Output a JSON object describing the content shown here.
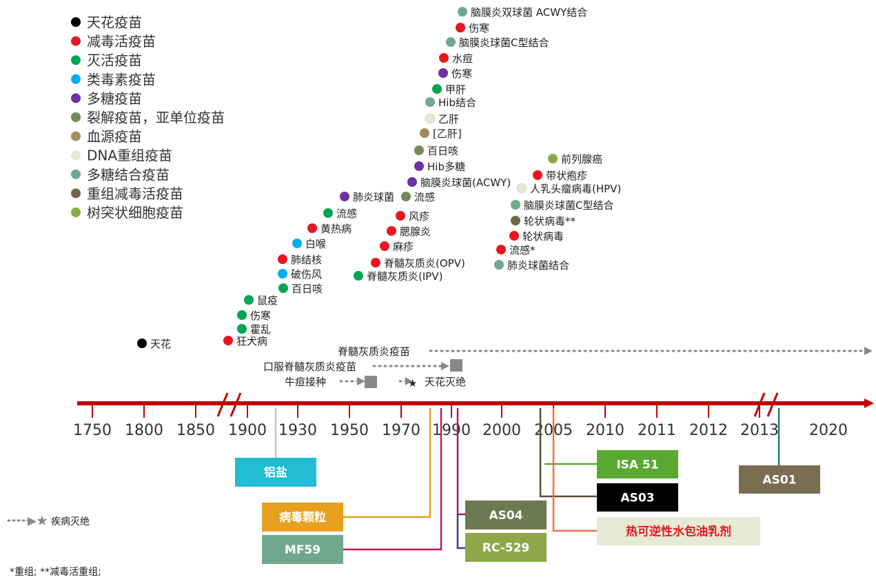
{
  "legend": [
    {
      "label": "天花疫苗",
      "color": "#000000"
    },
    {
      "label": "减毒活疫苗",
      "color": "#e8171f"
    },
    {
      "label": "灭活疫苗",
      "color": "#00a651"
    },
    {
      "label": "类毒素疫苗",
      "color": "#00aeef"
    },
    {
      "label": "多糖疫苗",
      "color": "#7030a0"
    },
    {
      "label": "裂解疫苗，亚单位疫苗",
      "color": "#76885b"
    },
    {
      "label": "血源疫苗",
      "color": "#a38a5f"
    },
    {
      "label": "DNA重组疫苗",
      "color": "#e6e8d2"
    },
    {
      "label": "多糖结合疫苗",
      "color": "#6fa88f"
    },
    {
      "label": "重组减毒活疫苗",
      "color": "#6d6647"
    },
    {
      "label": "树突状细胞疫苗",
      "color": "#8da84a"
    }
  ],
  "vaccines": [
    {
      "label": "天花",
      "type": 0
    },
    {
      "label": "狂犬病",
      "type": 1
    },
    {
      "label": "霍乱",
      "type": 2
    },
    {
      "label": "伤寒",
      "type": 2
    },
    {
      "label": "鼠疫",
      "type": 2
    },
    {
      "label": "百日咳",
      "type": 2
    },
    {
      "label": "破伤风",
      "type": 3
    },
    {
      "label": "肺结核",
      "type": 1
    },
    {
      "label": "白喉",
      "type": 3
    },
    {
      "label": "黄热病",
      "type": 1
    },
    {
      "label": "流感",
      "type": 2
    },
    {
      "label": "肺炎球菌",
      "type": 4
    },
    {
      "label": "脊髓灰质炎(IPV)",
      "type": 2
    },
    {
      "label": "脊髓灰质炎(OPV)",
      "type": 1
    },
    {
      "label": "麻疹",
      "type": 1
    },
    {
      "label": "腮腺炎",
      "type": 1
    },
    {
      "label": "风疹",
      "type": 1
    },
    {
      "label": "流感",
      "type": 5
    },
    {
      "label": "脑膜炎球菌(ACWY)",
      "type": 4
    },
    {
      "label": "Hib多糖",
      "type": 4
    },
    {
      "label": "百日咳",
      "type": 5
    },
    {
      "label": "[乙肝]",
      "type": 6
    },
    {
      "label": "乙肝",
      "type": 7
    },
    {
      "label": "Hib结合",
      "type": 8
    },
    {
      "label": "甲肝",
      "type": 2
    },
    {
      "label": "伤寒",
      "type": 4
    },
    {
      "label": "水痘",
      "type": 1
    },
    {
      "label": "脑膜炎球菌C型结合",
      "type": 8
    },
    {
      "label": "伤寒",
      "type": 1
    },
    {
      "label": "脑膜炎双球菌 ACWY结合",
      "type": 8
    },
    {
      "label": "肺炎球菌结合",
      "type": 8
    },
    {
      "label": "流感*",
      "type": 1
    },
    {
      "label": "轮状病毒",
      "type": 1
    },
    {
      "label": "轮状病毒**",
      "type": 9
    },
    {
      "label": "脑膜炎球菌C型结合",
      "type": 8
    },
    {
      "label": "人乳头瘤病毒(HPV)",
      "type": 7
    },
    {
      "label": "带状疱疹",
      "type": 1
    },
    {
      "label": "前列腺癌",
      "type": 10
    }
  ],
  "eradication": [
    {
      "label": "脊髓灰质炎疫苗"
    },
    {
      "label": "口服脊髓灰质炎疫苗"
    },
    {
      "label": "牛痘接种"
    },
    {
      "label": "天花灭绝"
    }
  ],
  "timeline": {
    "years": [
      "1750",
      "1800",
      "1850",
      "1900",
      "1930",
      "1950",
      "1970",
      "1990",
      "2000",
      "2005",
      "2010",
      "2011",
      "2012",
      "2013",
      "2020"
    ],
    "axis_color": "#c00000"
  },
  "adjuvants": [
    {
      "label": "铝盐",
      "bg": "#22bcd4",
      "fg": "#ffffff",
      "line": "#c8c8b6"
    },
    {
      "label": "病毒颗粒",
      "bg": "#e8a020",
      "fg": "#ffffff",
      "line": "#e8a020"
    },
    {
      "label": "MF59",
      "bg": "#6fa88f",
      "fg": "#ffffff",
      "line": "#c8174d"
    },
    {
      "label": "AS04",
      "bg": "#6d7a51",
      "fg": "#ffffff",
      "line": "#b0166a"
    },
    {
      "label": "RC-529",
      "bg": "#8da84a",
      "fg": "#ffffff",
      "line": "#3a3a8a"
    },
    {
      "label": "ISA 51",
      "bg": "#5aa832",
      "fg": "#ffffff",
      "line": "#5aa832"
    },
    {
      "label": "AS03",
      "bg": "#000000",
      "fg": "#ffffff",
      "line": "#5a4a3a"
    },
    {
      "label": "热可逆性水包油乳剂",
      "bg": "#e6ebd6",
      "fg": "#e8171f",
      "line": "#f07040"
    },
    {
      "label": "AS01",
      "bg": "#7a6e52",
      "fg": "#ffffff",
      "line": "#1a7a70"
    }
  ],
  "legend_extinction": "疾病灭绝",
  "footnote": "*重组; **减毒活重组;"
}
